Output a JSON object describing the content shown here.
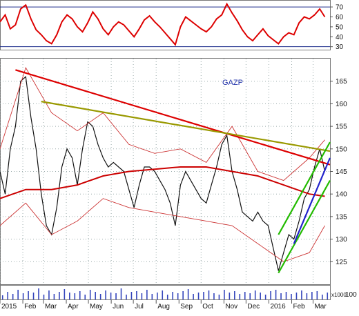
{
  "chart_data": [
    {
      "type": "line",
      "panel": "RSI",
      "y_ticks": [
        30,
        40,
        50,
        60,
        70
      ],
      "ylim": [
        27,
        77
      ],
      "reference_lines": [
        70,
        30
      ],
      "series": [
        {
          "color": "#dd0000",
          "x": [
            "2015-01-01",
            "2015-01-08",
            "2015-01-15",
            "2015-01-22",
            "2015-01-29",
            "2015-02-05",
            "2015-02-12",
            "2015-02-19",
            "2015-02-26",
            "2015-03-05",
            "2015-03-12",
            "2015-03-19",
            "2015-03-26",
            "2015-04-02",
            "2015-04-09",
            "2015-04-16",
            "2015-04-23",
            "2015-04-30",
            "2015-05-07",
            "2015-05-14",
            "2015-05-21",
            "2015-05-28",
            "2015-06-04",
            "2015-06-11",
            "2015-06-18",
            "2015-06-25",
            "2015-07-02",
            "2015-07-09",
            "2015-07-16",
            "2015-07-23",
            "2015-07-30",
            "2015-08-06",
            "2015-08-13",
            "2015-08-20",
            "2015-08-27",
            "2015-09-03",
            "2015-09-10",
            "2015-09-17",
            "2015-09-24",
            "2015-10-01",
            "2015-10-08",
            "2015-10-15",
            "2015-10-22",
            "2015-10-29",
            "2015-11-05",
            "2015-11-12",
            "2015-11-19",
            "2015-11-26",
            "2015-12-03",
            "2015-12-10",
            "2015-12-17",
            "2015-12-24",
            "2015-12-31",
            "2016-01-07",
            "2016-01-14",
            "2016-01-21",
            "2016-01-28",
            "2016-02-04",
            "2016-02-11",
            "2016-02-18",
            "2016-02-25",
            "2016-03-03",
            "2016-03-10",
            "2016-03-17"
          ],
          "values": [
            55,
            62,
            48,
            52,
            68,
            72,
            58,
            47,
            42,
            36,
            33,
            42,
            55,
            62,
            58,
            50,
            45,
            54,
            65,
            58,
            48,
            42,
            50,
            55,
            52,
            46,
            40,
            48,
            57,
            61,
            55,
            50,
            44,
            38,
            32,
            50,
            60,
            56,
            52,
            48,
            45,
            50,
            58,
            62,
            73,
            64,
            56,
            47,
            40,
            36,
            42,
            48,
            41,
            37,
            33,
            40,
            44,
            42,
            54,
            60,
            58,
            62,
            68,
            60
          ]
        }
      ]
    },
    {
      "type": "line",
      "panel": "Price",
      "title": "GAZP",
      "x_ticks": [
        "2015",
        "Feb",
        "Mar",
        "Apr",
        "May",
        "Jun",
        "Jul",
        "Aug",
        "Sep",
        "Oct",
        "Nov",
        "Dec",
        "2016",
        "Feb",
        "Mar"
      ],
      "y_ticks": [
        125,
        130,
        135,
        140,
        145,
        150,
        155,
        160,
        165
      ],
      "ylim": [
        120,
        170
      ],
      "grid": true,
      "series": [
        {
          "name": "",
          "color": "#111111",
          "x": [
            "2015-01-01",
            "2015-01-08",
            "2015-01-15",
            "2015-01-22",
            "2015-01-29",
            "2015-02-05",
            "2015-02-12",
            "2015-02-19",
            "2015-02-26",
            "2015-03-05",
            "2015-03-12",
            "2015-03-19",
            "2015-03-26",
            "2015-04-02",
            "2015-04-09",
            "2015-04-16",
            "2015-04-23",
            "2015-04-30",
            "2015-05-07",
            "2015-05-14",
            "2015-05-21",
            "2015-05-28",
            "2015-06-04",
            "2015-06-11",
            "2015-06-18",
            "2015-06-25",
            "2015-07-02",
            "2015-07-09",
            "2015-07-16",
            "2015-07-23",
            "2015-07-30",
            "2015-08-06",
            "2015-08-13",
            "2015-08-20",
            "2015-08-27",
            "2015-09-03",
            "2015-09-10",
            "2015-09-17",
            "2015-09-24",
            "2015-10-01",
            "2015-10-08",
            "2015-10-15",
            "2015-10-22",
            "2015-10-29",
            "2015-11-05",
            "2015-11-12",
            "2015-11-19",
            "2015-11-26",
            "2015-12-03",
            "2015-12-10",
            "2015-12-17",
            "2015-12-24",
            "2015-12-31",
            "2016-01-07",
            "2016-01-14",
            "2016-01-21",
            "2016-01-28",
            "2016-02-04",
            "2016-02-11",
            "2016-02-18",
            "2016-02-25",
            "2016-03-03",
            "2016-03-10",
            "2016-03-17"
          ],
          "values": [
            145,
            140,
            150,
            155,
            165,
            166,
            157,
            150,
            140,
            133,
            131,
            137,
            146,
            150,
            148,
            142,
            150,
            156,
            155,
            151,
            148,
            146,
            147,
            146,
            145,
            141,
            137,
            142,
            146,
            146,
            145,
            143,
            141,
            138,
            133,
            142,
            145,
            143,
            141,
            139,
            138,
            142,
            146,
            151,
            153,
            145,
            141,
            136,
            135,
            134,
            136,
            134,
            133,
            128,
            123,
            127,
            131,
            130,
            134,
            139,
            141,
            146,
            150,
            145
          ]
        },
        {
          "name": "",
          "color": "#cc0000",
          "x": [
            "2015-01-01",
            "2015-02-05",
            "2015-03-12",
            "2015-04-16",
            "2015-05-21",
            "2015-06-25",
            "2015-07-30",
            "2015-09-03",
            "2015-10-08",
            "2015-11-12",
            "2015-12-17",
            "2016-01-21",
            "2016-02-25",
            "2016-03-17"
          ],
          "values": [
            139,
            141,
            141,
            142,
            144,
            145,
            145.5,
            146,
            146,
            145,
            144,
            142,
            140,
            139.5
          ]
        },
        {
          "name": "",
          "color": "#cc3333",
          "x": [
            "2015-01-01",
            "2015-02-05",
            "2015-03-12",
            "2015-04-16",
            "2015-05-21",
            "2015-06-25",
            "2015-07-30",
            "2015-09-03",
            "2015-10-08",
            "2015-11-12",
            "2015-12-17",
            "2016-01-21",
            "2016-02-25",
            "2016-03-17"
          ],
          "values": [
            150,
            168,
            158,
            154,
            158,
            151,
            149,
            150,
            147,
            155,
            145,
            143,
            148,
            152
          ]
        },
        {
          "name": "",
          "color": "#cc3333",
          "x": [
            "2015-01-01",
            "2015-02-05",
            "2015-03-12",
            "2015-04-16",
            "2015-05-21",
            "2015-06-25",
            "2015-07-30",
            "2015-09-03",
            "2015-10-08",
            "2015-11-12",
            "2015-12-17",
            "2016-01-21",
            "2016-02-25",
            "2016-03-17"
          ],
          "values": [
            133,
            138,
            131,
            134,
            139,
            137,
            136,
            135,
            134,
            133,
            129,
            125,
            127,
            133
          ]
        }
      ],
      "trendlines": [
        {
          "color": "#dd0000",
          "x": [
            "2015-01-22",
            "2016-03-24"
          ],
          "y": [
            167.5,
            146.5
          ]
        },
        {
          "color": "#999900",
          "x": [
            "2015-02-26",
            "2016-03-24"
          ],
          "y": [
            160.5,
            149.5
          ]
        },
        {
          "color": "#22bb00",
          "x": [
            "2016-01-14",
            "2016-03-24"
          ],
          "y": [
            131,
            151.5
          ]
        },
        {
          "color": "#22bb00",
          "x": [
            "2016-01-14",
            "2016-03-24"
          ],
          "y": [
            122.5,
            143
          ]
        },
        {
          "color": "#2222cc",
          "x": [
            "2016-02-04",
            "2016-03-24"
          ],
          "y": [
            129,
            148
          ]
        }
      ]
    },
    {
      "type": "bar",
      "panel": "Volume",
      "unit_label": "x1000",
      "y_ticks": [
        100
      ],
      "ylim": [
        0,
        100
      ],
      "values": [
        30,
        55,
        40,
        70,
        45,
        60,
        50,
        80,
        35,
        65,
        40,
        55,
        75,
        50,
        45,
        60,
        35,
        70,
        55,
        40,
        65,
        50,
        45,
        80,
        35,
        55,
        60,
        45,
        70,
        40,
        50,
        65,
        35,
        55,
        45,
        60,
        75,
        40,
        50,
        55,
        65,
        45,
        35,
        70,
        50,
        60,
        40,
        55,
        45,
        65,
        50,
        35,
        60,
        70,
        45,
        55,
        40,
        50,
        65,
        45,
        55,
        60,
        35,
        50
      ]
    }
  ]
}
